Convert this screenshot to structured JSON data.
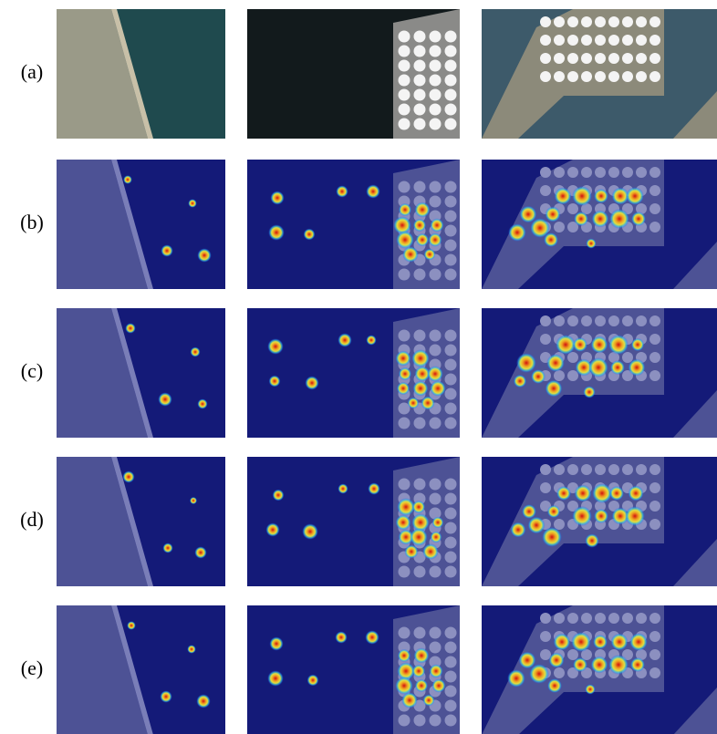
{
  "row_labels": [
    "(a)",
    "(b)",
    "(c)",
    "(d)",
    "(e)"
  ]
}
